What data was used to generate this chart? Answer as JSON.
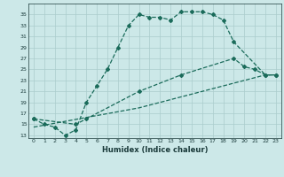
{
  "xlabel": "Humidex (Indice chaleur)",
  "bg_color": "#cce8e8",
  "grid_color": "#aacccc",
  "line_color": "#1a6b5a",
  "line1_x": [
    0,
    1,
    2,
    3,
    4,
    5,
    6,
    7,
    8,
    9,
    10,
    11,
    12,
    13,
    14,
    15,
    16,
    17,
    18,
    19,
    22,
    23
  ],
  "line1_y": [
    16,
    15,
    14.5,
    13,
    14,
    19,
    22,
    25,
    29,
    33,
    35,
    34.5,
    34.5,
    34,
    35.5,
    35.5,
    35.5,
    35,
    34,
    30,
    24,
    24
  ],
  "line2_x": [
    0,
    4,
    5,
    10,
    14,
    19,
    20,
    21,
    22,
    23
  ],
  "line2_y": [
    16,
    15,
    16,
    21,
    24,
    27,
    25.5,
    25,
    24,
    24
  ],
  "line3_x": [
    0,
    10,
    19,
    22,
    23
  ],
  "line3_y": [
    14.5,
    18,
    22.5,
    24,
    24
  ],
  "xlim": [
    -0.5,
    23.5
  ],
  "ylim": [
    12.5,
    37
  ],
  "yticks": [
    13,
    15,
    17,
    19,
    21,
    23,
    25,
    27,
    29,
    31,
    33,
    35
  ],
  "xticks": [
    0,
    1,
    2,
    3,
    4,
    5,
    6,
    7,
    8,
    9,
    10,
    11,
    12,
    13,
    14,
    15,
    16,
    17,
    18,
    19,
    20,
    21,
    22,
    23
  ]
}
